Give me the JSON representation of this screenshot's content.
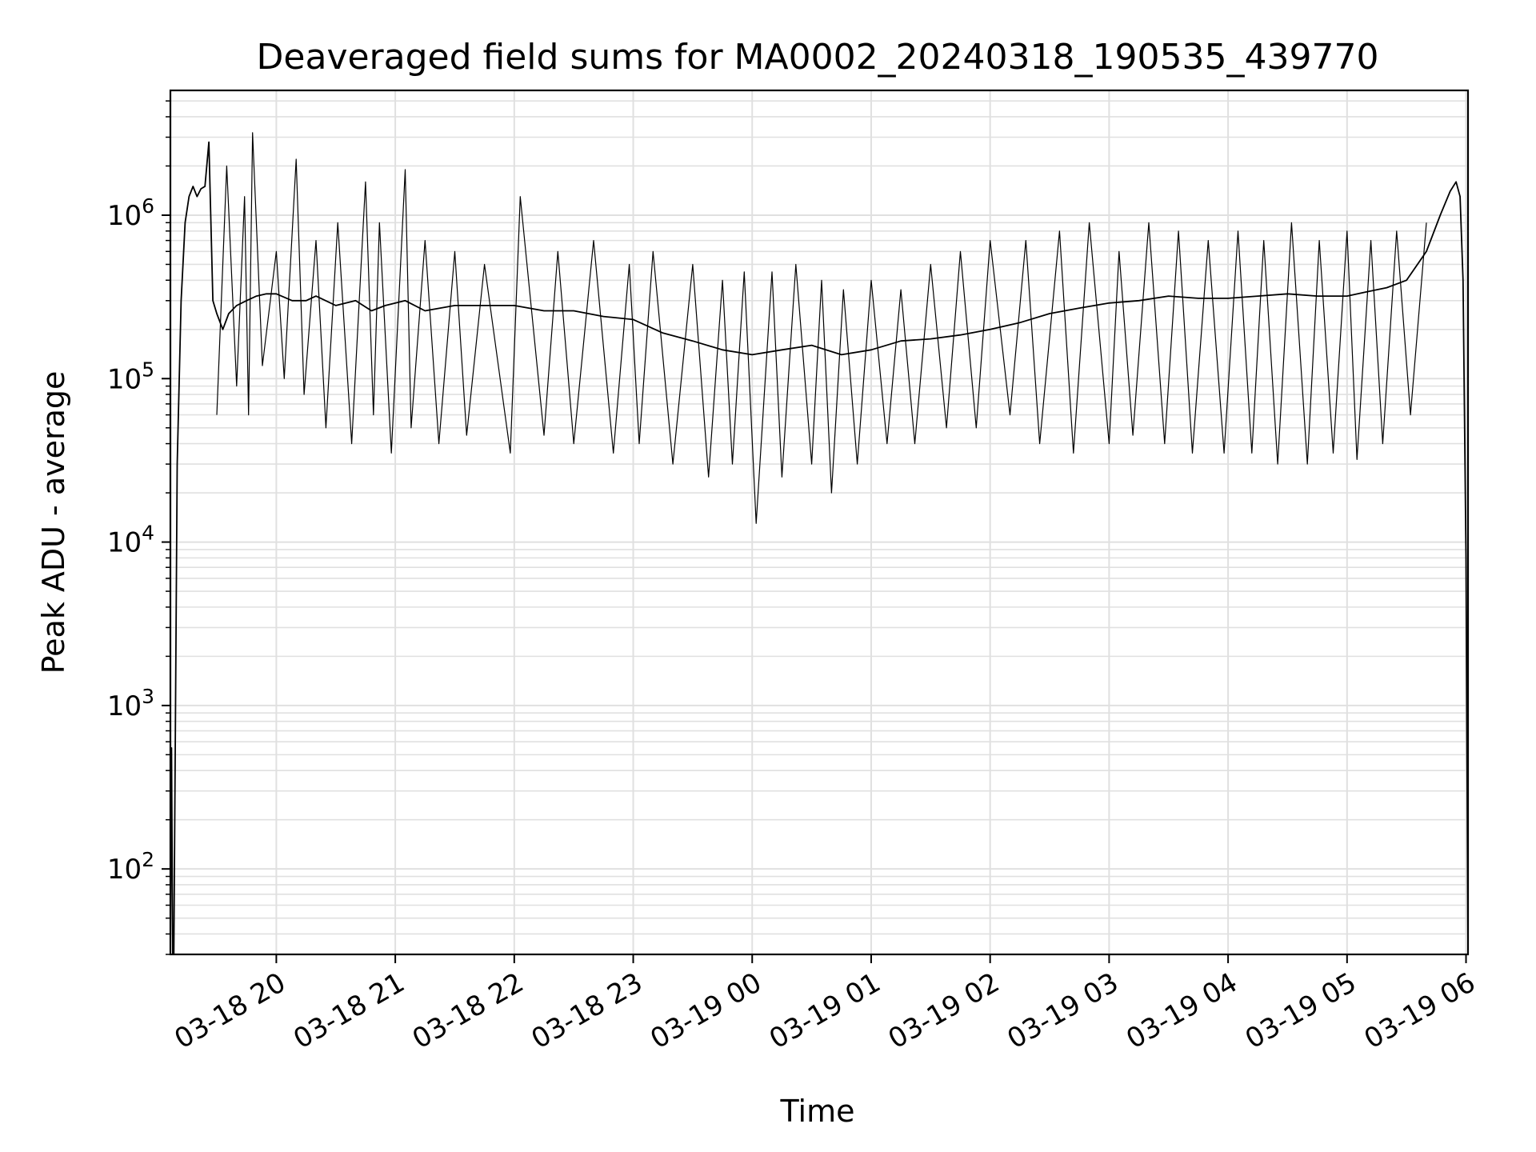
{
  "chart_data": {
    "type": "line",
    "title": "Deaveraged field sums for MA0002_20240318_190535_439770",
    "xlabel": "Time",
    "ylabel": "Peak ADU - average",
    "yscale": "log",
    "ylim": [
      30,
      5800000
    ],
    "xlim": [
      "2024-03-18T19:06:35",
      "2024-03-19T06:01:00"
    ],
    "grid": true,
    "line_color": "#000000",
    "grid_color": "#e0e0e0",
    "y_ticks": [
      {
        "value": 100,
        "base": "10",
        "exp": "2"
      },
      {
        "value": 1000,
        "base": "10",
        "exp": "3"
      },
      {
        "value": 10000,
        "base": "10",
        "exp": "4"
      },
      {
        "value": 100000,
        "base": "10",
        "exp": "5"
      },
      {
        "value": 1000000,
        "base": "10",
        "exp": "6"
      }
    ],
    "x_ticks": [
      {
        "t": "2024-03-18T20:00:00",
        "label": "03-18 20"
      },
      {
        "t": "2024-03-18T21:00:00",
        "label": "03-18 21"
      },
      {
        "t": "2024-03-18T22:00:00",
        "label": "03-18 22"
      },
      {
        "t": "2024-03-18T23:00:00",
        "label": "03-18 23"
      },
      {
        "t": "2024-03-19T00:00:00",
        "label": "03-19 00"
      },
      {
        "t": "2024-03-19T01:00:00",
        "label": "03-19 01"
      },
      {
        "t": "2024-03-19T02:00:00",
        "label": "03-19 02"
      },
      {
        "t": "2024-03-19T03:00:00",
        "label": "03-19 03"
      },
      {
        "t": "2024-03-19T04:00:00",
        "label": "03-19 04"
      },
      {
        "t": "2024-03-19T05:00:00",
        "label": "03-19 05"
      },
      {
        "t": "2024-03-19T06:00:00",
        "label": "03-19 06"
      }
    ],
    "series": [
      {
        "x": [
          "2024-03-18T19:06:35",
          "2024-03-18T19:07:10",
          "2024-03-18T19:07:45",
          "2024-03-18T19:08:20",
          "2024-03-18T19:10:00",
          "2024-03-18T19:12:00",
          "2024-03-18T19:14:00",
          "2024-03-18T19:16:00",
          "2024-03-18T19:18:00",
          "2024-03-18T19:20:00",
          "2024-03-18T19:22:00",
          "2024-03-18T19:24:00",
          "2024-03-18T19:26:00",
          "2024-03-18T19:28:00",
          "2024-03-18T19:30:00",
          "2024-03-18T19:33:00",
          "2024-03-18T19:36:00",
          "2024-03-18T19:40:00",
          "2024-03-18T19:45:00",
          "2024-03-18T19:50:00",
          "2024-03-18T19:55:00",
          "2024-03-18T20:00:00",
          "2024-03-18T20:08:00",
          "2024-03-18T20:15:00",
          "2024-03-18T20:20:00",
          "2024-03-18T20:30:00",
          "2024-03-18T20:40:00",
          "2024-03-18T20:48:00",
          "2024-03-18T20:55:00",
          "2024-03-18T21:05:00",
          "2024-03-18T21:15:00",
          "2024-03-18T21:30:00",
          "2024-03-18T21:45:00",
          "2024-03-18T22:00:00",
          "2024-03-18T22:15:00",
          "2024-03-18T22:30:00",
          "2024-03-18T22:45:00",
          "2024-03-18T23:00:00",
          "2024-03-18T23:15:00",
          "2024-03-18T23:30:00",
          "2024-03-18T23:45:00",
          "2024-03-19T00:00:00",
          "2024-03-19T00:15:00",
          "2024-03-19T00:30:00",
          "2024-03-19T00:45:00",
          "2024-03-19T01:00:00",
          "2024-03-19T01:15:00",
          "2024-03-19T01:30:00",
          "2024-03-19T01:45:00",
          "2024-03-19T02:00:00",
          "2024-03-19T02:15:00",
          "2024-03-19T02:30:00",
          "2024-03-19T02:45:00",
          "2024-03-19T03:00:00",
          "2024-03-19T03:15:00",
          "2024-03-19T03:30:00",
          "2024-03-19T03:45:00",
          "2024-03-19T04:00:00",
          "2024-03-19T04:15:00",
          "2024-03-19T04:30:00",
          "2024-03-19T04:45:00",
          "2024-03-19T05:00:00",
          "2024-03-19T05:10:00",
          "2024-03-19T05:20:00",
          "2024-03-19T05:30:00",
          "2024-03-19T05:40:00",
          "2024-03-19T05:47:00",
          "2024-03-19T05:52:00",
          "2024-03-19T05:55:00",
          "2024-03-19T05:57:00",
          "2024-03-19T05:58:30",
          "2024-03-19T06:00:00",
          "2024-03-19T06:01:00"
        ],
        "y": [
          30,
          550,
          30,
          30,
          30000,
          300000,
          900000,
          1300000,
          1500000,
          1300000,
          1450000,
          1500000,
          2800000,
          300000,
          250000,
          200000,
          250000,
          280000,
          300000,
          320000,
          330000,
          330000,
          300000,
          300000,
          320000,
          280000,
          300000,
          260000,
          280000,
          300000,
          260000,
          280000,
          280000,
          280000,
          260000,
          260000,
          240000,
          230000,
          190000,
          170000,
          150000,
          140000,
          150000,
          160000,
          140000,
          150000,
          170000,
          175000,
          185000,
          200000,
          220000,
          250000,
          270000,
          290000,
          300000,
          320000,
          310000,
          310000,
          320000,
          330000,
          320000,
          320000,
          340000,
          360000,
          400000,
          600000,
          1000000,
          1400000,
          1600000,
          1300000,
          400000,
          8000,
          30
        ]
      },
      {
        "x": [
          "2024-03-18T19:30:00",
          "2024-03-18T19:35:00",
          "2024-03-18T19:40:00",
          "2024-03-18T19:44:00",
          "2024-03-18T19:46:00",
          "2024-03-18T19:48:00",
          "2024-03-18T19:53:00",
          "2024-03-18T20:00:00",
          "2024-03-18T20:04:00",
          "2024-03-18T20:10:00",
          "2024-03-18T20:14:00",
          "2024-03-18T20:20:00",
          "2024-03-18T20:25:00",
          "2024-03-18T20:31:00",
          "2024-03-18T20:38:00",
          "2024-03-18T20:45:00",
          "2024-03-18T20:49:00",
          "2024-03-18T20:52:00",
          "2024-03-18T20:58:00",
          "2024-03-18T21:05:00",
          "2024-03-18T21:08:00",
          "2024-03-18T21:15:00",
          "2024-03-18T21:22:00",
          "2024-03-18T21:30:00",
          "2024-03-18T21:36:00",
          "2024-03-18T21:45:00",
          "2024-03-18T21:58:00",
          "2024-03-18T22:03:00",
          "2024-03-18T22:15:00",
          "2024-03-18T22:22:00",
          "2024-03-18T22:30:00",
          "2024-03-18T22:40:00",
          "2024-03-18T22:50:00",
          "2024-03-18T22:58:00",
          "2024-03-18T23:03:00",
          "2024-03-18T23:10:00",
          "2024-03-18T23:20:00",
          "2024-03-18T23:30:00",
          "2024-03-18T23:38:00",
          "2024-03-18T23:45:00",
          "2024-03-18T23:50:00",
          "2024-03-18T23:56:00",
          "2024-03-19T00:02:00",
          "2024-03-19T00:10:00",
          "2024-03-19T00:15:00",
          "2024-03-19T00:22:00",
          "2024-03-19T00:30:00",
          "2024-03-19T00:35:00",
          "2024-03-19T00:40:00",
          "2024-03-19T00:46:00",
          "2024-03-19T00:53:00",
          "2024-03-19T01:00:00",
          "2024-03-19T01:08:00",
          "2024-03-19T01:15:00",
          "2024-03-19T01:22:00",
          "2024-03-19T01:30:00",
          "2024-03-19T01:38:00",
          "2024-03-19T01:45:00",
          "2024-03-19T01:53:00",
          "2024-03-19T02:00:00",
          "2024-03-19T02:10:00",
          "2024-03-19T02:18:00",
          "2024-03-19T02:25:00",
          "2024-03-19T02:35:00",
          "2024-03-19T02:42:00",
          "2024-03-19T02:50:00",
          "2024-03-19T03:00:00",
          "2024-03-19T03:05:00",
          "2024-03-19T03:12:00",
          "2024-03-19T03:20:00",
          "2024-03-19T03:28:00",
          "2024-03-19T03:35:00",
          "2024-03-19T03:42:00",
          "2024-03-19T03:50:00",
          "2024-03-19T03:58:00",
          "2024-03-19T04:05:00",
          "2024-03-19T04:12:00",
          "2024-03-19T04:18:00",
          "2024-03-19T04:25:00",
          "2024-03-19T04:32:00",
          "2024-03-19T04:40:00",
          "2024-03-19T04:46:00",
          "2024-03-19T04:53:00",
          "2024-03-19T05:00:00",
          "2024-03-19T05:05:00",
          "2024-03-19T05:12:00",
          "2024-03-19T05:18:00",
          "2024-03-19T05:25:00",
          "2024-03-19T05:32:00",
          "2024-03-19T05:40:00"
        ],
        "y": [
          60000,
          2000000,
          90000,
          1300000,
          60000,
          3200000,
          120000,
          600000,
          100000,
          2200000,
          80000,
          700000,
          50000,
          900000,
          40000,
          1600000,
          60000,
          900000,
          35000,
          1900000,
          50000,
          700000,
          40000,
          600000,
          45000,
          500000,
          35000,
          1300000,
          45000,
          600000,
          40000,
          700000,
          35000,
          500000,
          40000,
          600000,
          30000,
          500000,
          25000,
          400000,
          30000,
          450000,
          13000,
          450000,
          25000,
          500000,
          30000,
          400000,
          20000,
          350000,
          30000,
          400000,
          40000,
          350000,
          40000,
          500000,
          50000,
          600000,
          50000,
          700000,
          60000,
          700000,
          40000,
          800000,
          35000,
          900000,
          40000,
          600000,
          45000,
          900000,
          40000,
          800000,
          35000,
          700000,
          35000,
          800000,
          35000,
          700000,
          30000,
          900000,
          30000,
          700000,
          35000,
          800000,
          32000,
          700000,
          40000,
          800000,
          60000,
          900000
        ]
      }
    ]
  }
}
